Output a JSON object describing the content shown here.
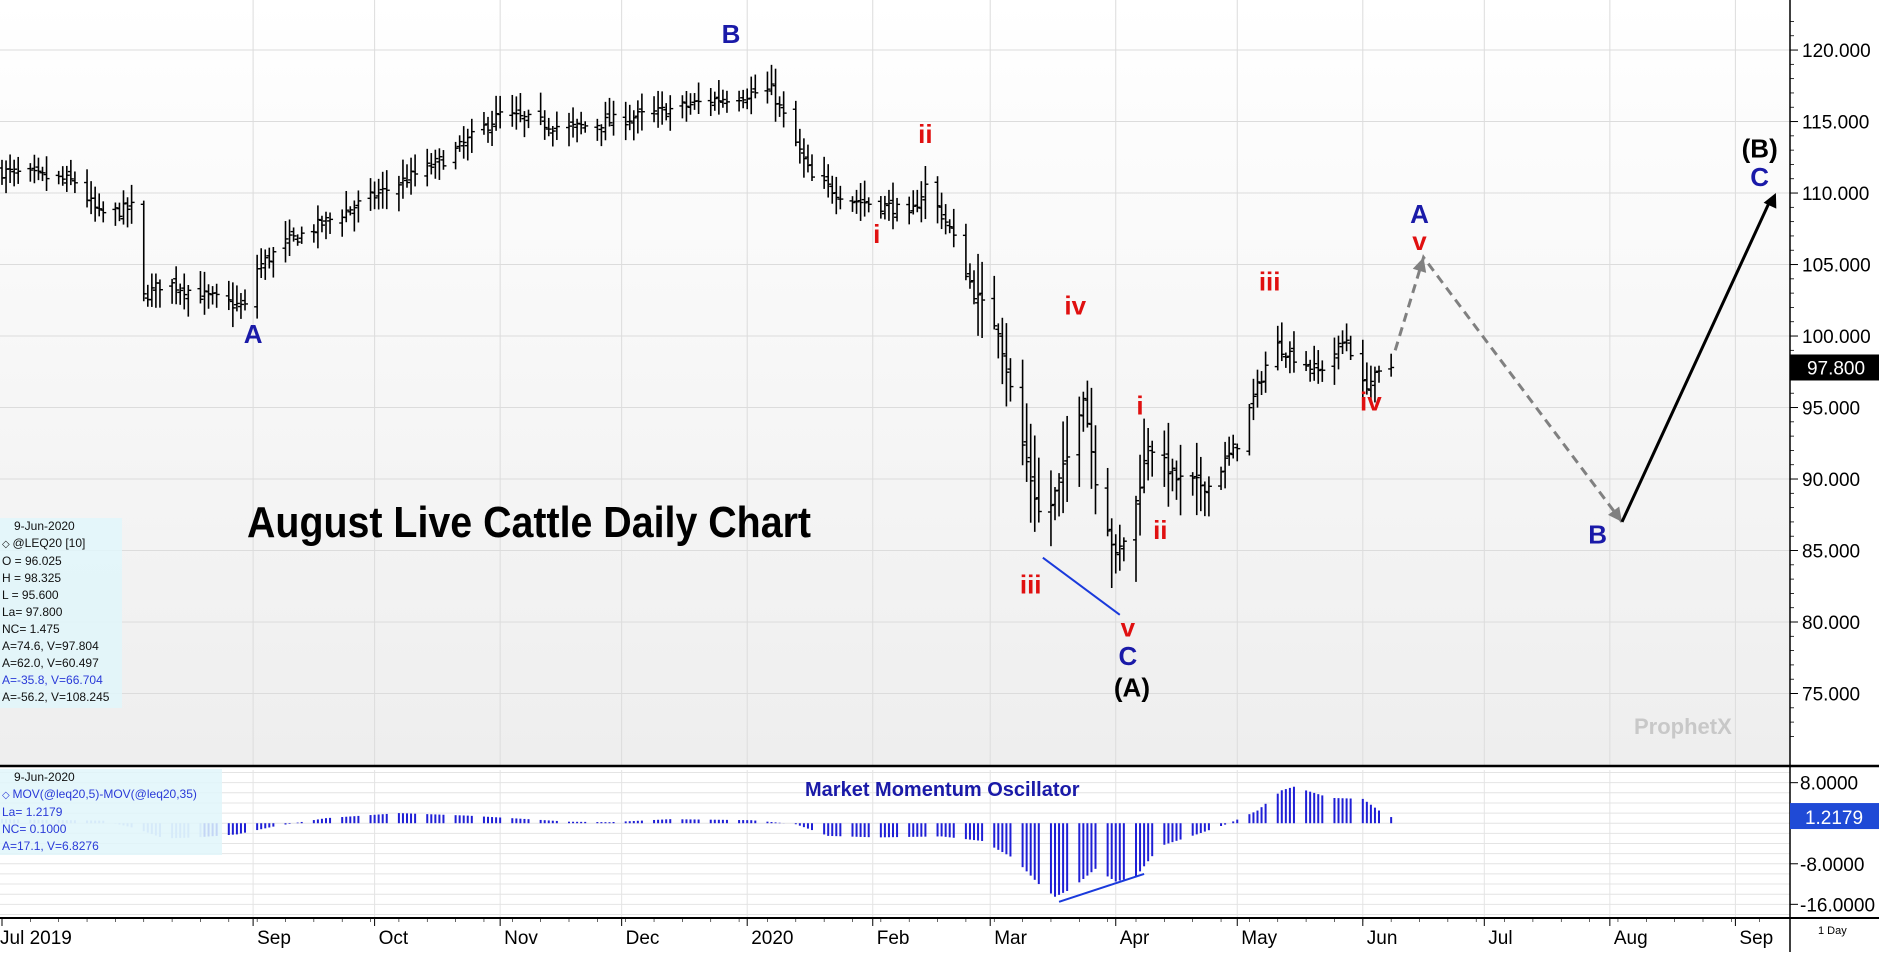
{
  "chart_data": [
    {
      "type": "ohlc",
      "title": "August Live Cattle Daily Chart",
      "info": {
        "date": "9-Jun-2020",
        "symbol": "@LEQ20 [10]",
        "lines": [
          "O = 96.025",
          "H = 98.325",
          "L = 95.600",
          "La= 97.800",
          "NC= 1.475",
          "A=74.6, V=97.804",
          "A=62.0, V=60.497",
          "A=-35.8, V=66.704",
          "A=-56.2, V=108.245"
        ]
      },
      "y_ticks": [
        120,
        115,
        110,
        105,
        100,
        95,
        90,
        85,
        80,
        75
      ],
      "y_tick_labels": [
        "120.000",
        "115.000",
        "110.000",
        "105.000",
        "100.000",
        "95.000",
        "90.000",
        "85.000",
        "80.000",
        "75.000"
      ],
      "ylim": [
        70,
        123.5
      ],
      "last_price": 97.8,
      "last_price_label": "97.800",
      "x_month_labels": [
        "Jul 2019",
        "Sep",
        "Oct",
        "Nov",
        "Dec",
        "2020",
        "Feb",
        "Mar",
        "Apr",
        "May",
        "Jun",
        "Jul",
        "Aug",
        "Sep"
      ],
      "x_month_start_days": [
        0,
        62,
        92,
        123,
        153,
        184,
        215,
        244,
        275,
        305,
        336,
        366,
        397,
        428
      ],
      "period_label": "1 Day",
      "x_range_days": [
        0,
        440
      ],
      "anchors": [
        {
          "day": 0,
          "close": 111.5
        },
        {
          "day": 18,
          "close": 110.8
        },
        {
          "day": 24,
          "close": 108.5
        },
        {
          "day": 30,
          "close": 108.8
        },
        {
          "day": 32,
          "close": 109.0
        },
        {
          "day": 34,
          "close": 102.5
        },
        {
          "day": 40,
          "close": 103.8
        },
        {
          "day": 50,
          "close": 102.8
        },
        {
          "day": 60,
          "close": 102.0
        },
        {
          "day": 62,
          "close": 104.5
        },
        {
          "day": 70,
          "close": 106.5
        },
        {
          "day": 90,
          "close": 109.5
        },
        {
          "day": 110,
          "close": 112.5
        },
        {
          "day": 123,
          "close": 115.5
        },
        {
          "day": 140,
          "close": 114.5
        },
        {
          "day": 160,
          "close": 115.5
        },
        {
          "day": 175,
          "close": 116.5
        },
        {
          "day": 190,
          "close": 117.2
        },
        {
          "day": 200,
          "close": 111.0
        },
        {
          "day": 210,
          "close": 109.5
        },
        {
          "day": 220,
          "close": 109.0
        },
        {
          "day": 224,
          "close": 108.2
        },
        {
          "day": 228,
          "close": 110.5
        },
        {
          "day": 234,
          "close": 107.5
        },
        {
          "day": 240,
          "close": 103.0
        },
        {
          "day": 246,
          "close": 100.5
        },
        {
          "day": 251,
          "close": 93.5
        },
        {
          "day": 257,
          "close": 86.5
        },
        {
          "day": 263,
          "close": 91.5
        },
        {
          "day": 267,
          "close": 96.0
        },
        {
          "day": 270,
          "close": 90.0
        },
        {
          "day": 275,
          "close": 84.5
        },
        {
          "day": 279,
          "close": 87.0
        },
        {
          "day": 283,
          "close": 92.5
        },
        {
          "day": 290,
          "close": 90.0
        },
        {
          "day": 298,
          "close": 89.5
        },
        {
          "day": 305,
          "close": 92.5
        },
        {
          "day": 314,
          "close": 99.5
        },
        {
          "day": 325,
          "close": 97.5
        },
        {
          "day": 332,
          "close": 99.8
        },
        {
          "day": 336,
          "close": 96.5
        },
        {
          "day": 343,
          "close": 97.8
        }
      ],
      "forecast_path": [
        {
          "day": 344,
          "value": 99.0
        },
        {
          "day": 351,
          "value": 105.5
        },
        {
          "day": 400,
          "value": 87.0
        },
        {
          "day": 438,
          "value": 110.0
        }
      ],
      "trendline": {
        "points": [
          {
            "day": 257,
            "value": 84.5
          },
          {
            "day": 276,
            "value": 80.5
          }
        ]
      },
      "wave_labels": [
        {
          "text": "B",
          "day": 180,
          "value": 120.5,
          "color": "#1a1aa8"
        },
        {
          "text": "A",
          "day": 62,
          "value": 99.5,
          "color": "#1a1aa8"
        },
        {
          "text": "ii",
          "day": 228,
          "value": 113.5,
          "color": "#e01010"
        },
        {
          "text": "i",
          "day": 216,
          "value": 106.5,
          "color": "#e01010"
        },
        {
          "text": "iv",
          "day": 265,
          "value": 101.5,
          "color": "#e01010"
        },
        {
          "text": "iii",
          "day": 254,
          "value": 82.0,
          "color": "#e01010"
        },
        {
          "text": "v",
          "day": 278,
          "value": 79.0,
          "color": "#e01010"
        },
        {
          "text": "C",
          "day": 278,
          "value": 77.0,
          "color": "#1a1aa8"
        },
        {
          "text": "(A)",
          "day": 279,
          "value": 74.8,
          "color": "#000000"
        },
        {
          "text": "i",
          "day": 281,
          "value": 94.5,
          "color": "#e01010"
        },
        {
          "text": "ii",
          "day": 286,
          "value": 85.8,
          "color": "#e01010"
        },
        {
          "text": "iii",
          "day": 313,
          "value": 103.2,
          "color": "#e01010"
        },
        {
          "text": "iv",
          "day": 338,
          "value": 94.8,
          "color": "#e01010"
        },
        {
          "text": "A",
          "day": 350,
          "value": 107.9,
          "color": "#1a1aa8"
        },
        {
          "text": "v",
          "day": 350,
          "value": 106.0,
          "color": "#e01010"
        },
        {
          "text": "B",
          "day": 394,
          "value": 85.5,
          "color": "#1a1aa8"
        },
        {
          "text": "(B)",
          "day": 434,
          "value": 112.5,
          "color": "#000000"
        },
        {
          "text": "C",
          "day": 434,
          "value": 110.5,
          "color": "#1a1aa8"
        }
      ]
    },
    {
      "type": "bar",
      "title": "Market Momentum Oscillator",
      "info": {
        "date": "9-Jun-2020",
        "formula": "MOV(@leq20,5)-MOV(@leq20,35)",
        "lines": [
          "La= 1.2179",
          "NC= 0.1000",
          "A=17.1, V=6.8276"
        ]
      },
      "y_ticks": [
        8,
        0,
        -8,
        -16
      ],
      "y_tick_labels": [
        "8.0000",
        "",
        "-8.0000",
        "-16.0000"
      ],
      "ylim": [
        -18.5,
        10.5
      ],
      "last_value": 1.2179,
      "last_value_label": "1.2179",
      "anchors": [
        {
          "day": 0,
          "value": 0.8
        },
        {
          "day": 25,
          "value": 0.5
        },
        {
          "day": 33,
          "value": -1.0
        },
        {
          "day": 40,
          "value": -3.0
        },
        {
          "day": 48,
          "value": -2.8
        },
        {
          "day": 58,
          "value": -2.2
        },
        {
          "day": 68,
          "value": -0.5
        },
        {
          "day": 80,
          "value": 1.0
        },
        {
          "day": 98,
          "value": 2.0
        },
        {
          "day": 115,
          "value": 1.5
        },
        {
          "day": 130,
          "value": 0.8
        },
        {
          "day": 140,
          "value": 0.3
        },
        {
          "day": 150,
          "value": 0.2
        },
        {
          "day": 165,
          "value": 0.8
        },
        {
          "day": 185,
          "value": 0.6
        },
        {
          "day": 196,
          "value": -0.2
        },
        {
          "day": 204,
          "value": -2.5
        },
        {
          "day": 216,
          "value": -2.8
        },
        {
          "day": 232,
          "value": -2.6
        },
        {
          "day": 242,
          "value": -3.5
        },
        {
          "day": 250,
          "value": -7.0
        },
        {
          "day": 256,
          "value": -12.0
        },
        {
          "day": 260,
          "value": -14.5
        },
        {
          "day": 264,
          "value": -13.0
        },
        {
          "day": 270,
          "value": -9.0
        },
        {
          "day": 275,
          "value": -11.5
        },
        {
          "day": 280,
          "value": -10.5
        },
        {
          "day": 286,
          "value": -4.5
        },
        {
          "day": 295,
          "value": -2.2
        },
        {
          "day": 303,
          "value": 0.0
        },
        {
          "day": 310,
          "value": 2.5
        },
        {
          "day": 316,
          "value": 6.5
        },
        {
          "day": 319,
          "value": 7.2
        },
        {
          "day": 328,
          "value": 5.0
        },
        {
          "day": 336,
          "value": 4.8
        },
        {
          "day": 340,
          "value": 2.5
        },
        {
          "day": 343,
          "value": 1.2
        }
      ],
      "divergence_line": {
        "points": [
          {
            "day": 261,
            "value": -15.5
          },
          {
            "day": 282,
            "value": -10.0
          }
        ]
      }
    }
  ],
  "brand": {
    "name": "ProphetX"
  },
  "colors": {
    "grid": "#dcdcdc",
    "bars": "#000000",
    "osc_bars": "#1f1fd6",
    "osc_shade": "#9aa8f0",
    "wave_red": "#e01010",
    "wave_blue": "#1a1aa8",
    "forecast_dashed": "#808080",
    "trendline": "#1a3adc",
    "price_tag_bg": "#000000",
    "osc_tag_bg": "#1f4ad6"
  }
}
